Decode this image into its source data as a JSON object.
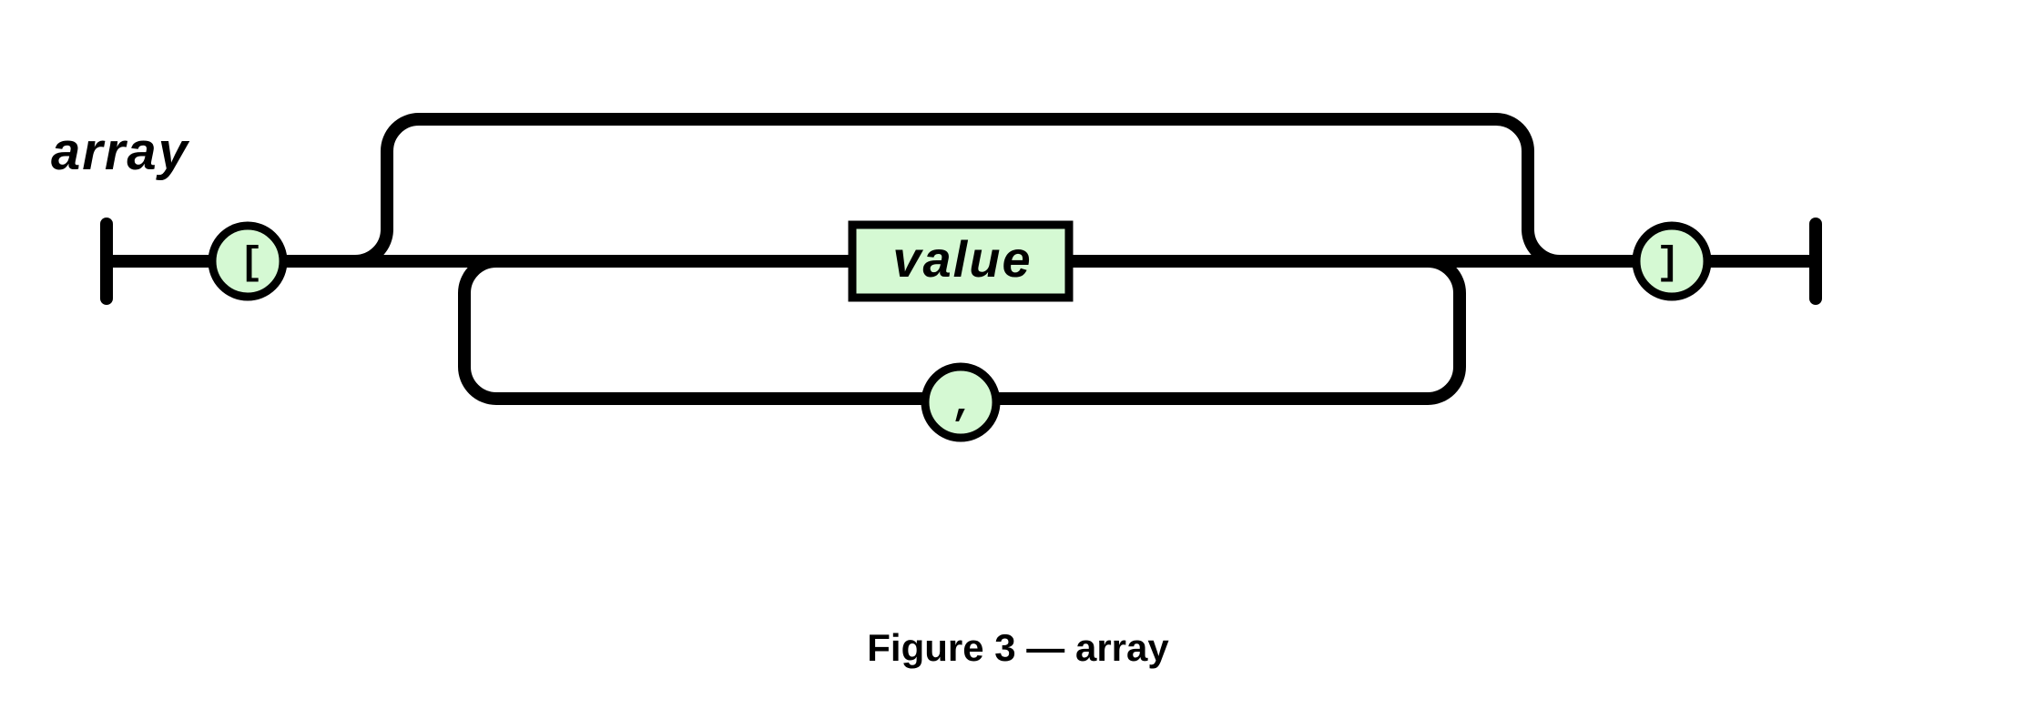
{
  "diagram": {
    "name": "array",
    "elements": {
      "open_bracket": "[",
      "value": "value",
      "comma": ",",
      "close_bracket": "]"
    },
    "colors": {
      "fill": "#d5f9d3",
      "stroke": "#000000"
    }
  },
  "caption": "Figure 3 — array"
}
